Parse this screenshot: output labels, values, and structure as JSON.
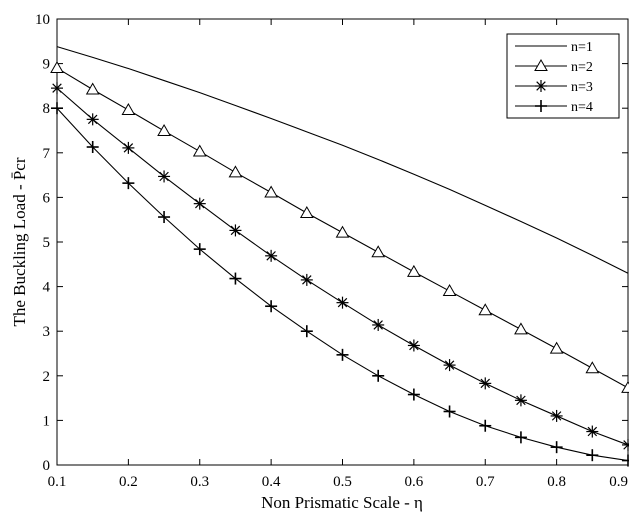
{
  "chart_data": {
    "type": "line",
    "title": "",
    "xlabel": "Non Prismatic Scale - η",
    "ylabel": "The Buckling Load - P̄cr",
    "xlim": [
      0.1,
      0.9
    ],
    "ylim": [
      0,
      10
    ],
    "xticks": [
      "0.1",
      "0.2",
      "0.3",
      "0.4",
      "0.5",
      "0.6",
      "0.7",
      "0.8",
      "0.9"
    ],
    "yticks": [
      "0",
      "1",
      "2",
      "3",
      "4",
      "5",
      "6",
      "7",
      "8",
      "9",
      "10"
    ],
    "grid": false,
    "legend_position": "top-right",
    "x": [
      0.1,
      0.15,
      0.2,
      0.25,
      0.3,
      0.35,
      0.4,
      0.45,
      0.5,
      0.55,
      0.6,
      0.65,
      0.7,
      0.75,
      0.8,
      0.85,
      0.9
    ],
    "series": [
      {
        "name": "n=1",
        "marker": "none",
        "values": [
          9.38,
          9.14,
          8.89,
          8.62,
          8.35,
          8.06,
          7.77,
          7.47,
          7.17,
          6.85,
          6.52,
          6.18,
          5.82,
          5.46,
          5.09,
          4.7,
          4.3
        ]
      },
      {
        "name": "n=2",
        "marker": "triangle",
        "values": [
          8.9,
          8.42,
          7.96,
          7.49,
          7.03,
          6.56,
          6.11,
          5.65,
          5.21,
          4.77,
          4.33,
          3.9,
          3.47,
          3.04,
          2.61,
          2.17,
          1.73
        ]
      },
      {
        "name": "n=3",
        "marker": "asterisk",
        "values": [
          8.45,
          7.75,
          7.11,
          6.47,
          5.86,
          5.26,
          4.69,
          4.15,
          3.64,
          3.14,
          2.68,
          2.24,
          1.83,
          1.45,
          1.1,
          0.75,
          0.45
        ]
      },
      {
        "name": "n=4",
        "marker": "plus",
        "values": [
          8.0,
          7.13,
          6.32,
          5.56,
          4.84,
          4.18,
          3.56,
          3.0,
          2.47,
          2.0,
          1.58,
          1.2,
          0.88,
          0.62,
          0.4,
          0.22,
          0.1
        ]
      }
    ]
  }
}
